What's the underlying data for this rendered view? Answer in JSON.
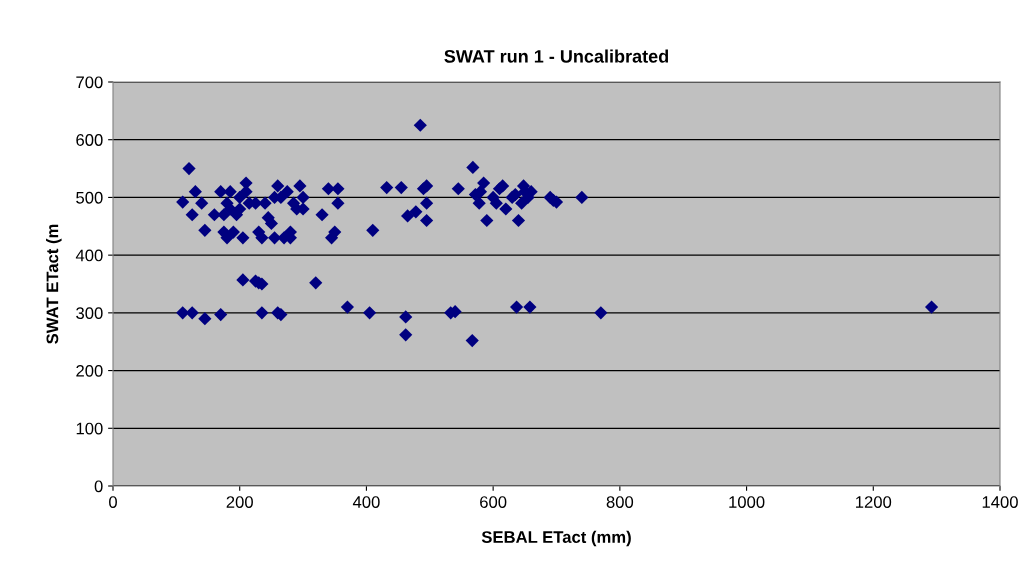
{
  "chart_data": {
    "type": "scatter",
    "title": "SWAT run 1 - Uncalibrated",
    "xlabel": "SEBAL ETact (mm)",
    "ylabel": "SWAT ETact (m",
    "marker": "diamond",
    "grid": "y",
    "xlim": [
      0,
      1400
    ],
    "xticks": [
      0,
      200,
      400,
      600,
      800,
      1000,
      1200,
      1400
    ],
    "ylim": [
      0,
      700
    ],
    "yticks": [
      0,
      100,
      200,
      300,
      400,
      500,
      600,
      700
    ],
    "series": [
      {
        "color": "#000080",
        "x": [
          110,
          125,
          145,
          170,
          235,
          260,
          265,
          320,
          205,
          225,
          230,
          235,
          370,
          405,
          462,
          462,
          533,
          540,
          567,
          637,
          658,
          770,
          1292,
          120,
          110,
          125,
          130,
          140,
          145,
          160,
          170,
          175,
          175,
          180,
          180,
          185,
          185,
          190,
          195,
          200,
          200,
          205,
          210,
          210,
          215,
          225,
          230,
          235,
          240,
          245,
          250,
          255,
          255,
          260,
          265,
          270,
          275,
          280,
          280,
          285,
          290,
          295,
          300,
          300,
          330,
          340,
          345,
          350,
          355,
          355,
          410,
          432,
          455,
          465,
          478,
          485,
          490,
          495,
          495,
          495,
          545,
          568,
          572,
          578,
          580,
          585,
          590,
          600,
          605,
          610,
          615,
          620,
          630,
          635,
          640,
          645,
          648,
          650,
          655,
          660,
          690,
          695,
          700,
          740
        ],
        "values": [
          300,
          300,
          290,
          297,
          300,
          300,
          297,
          352,
          357,
          355,
          352,
          350,
          310,
          300,
          293,
          262,
          300,
          302,
          252,
          310,
          310,
          300,
          310,
          550,
          492,
          470,
          510,
          490,
          443,
          470,
          510,
          440,
          470,
          490,
          430,
          510,
          480,
          440,
          470,
          500,
          480,
          430,
          525,
          510,
          490,
          490,
          440,
          430,
          490,
          465,
          455,
          430,
          500,
          520,
          500,
          430,
          510,
          440,
          430,
          490,
          480,
          520,
          500,
          480,
          470,
          515,
          430,
          440,
          490,
          515,
          443,
          517,
          517,
          468,
          475,
          625,
          515,
          520,
          490,
          460,
          515,
          552,
          505,
          490,
          510,
          525,
          460,
          500,
          490,
          515,
          520,
          480,
          500,
          505,
          460,
          490,
          520,
          510,
          500,
          510,
          500,
          495,
          492,
          500
        ]
      }
    ]
  }
}
